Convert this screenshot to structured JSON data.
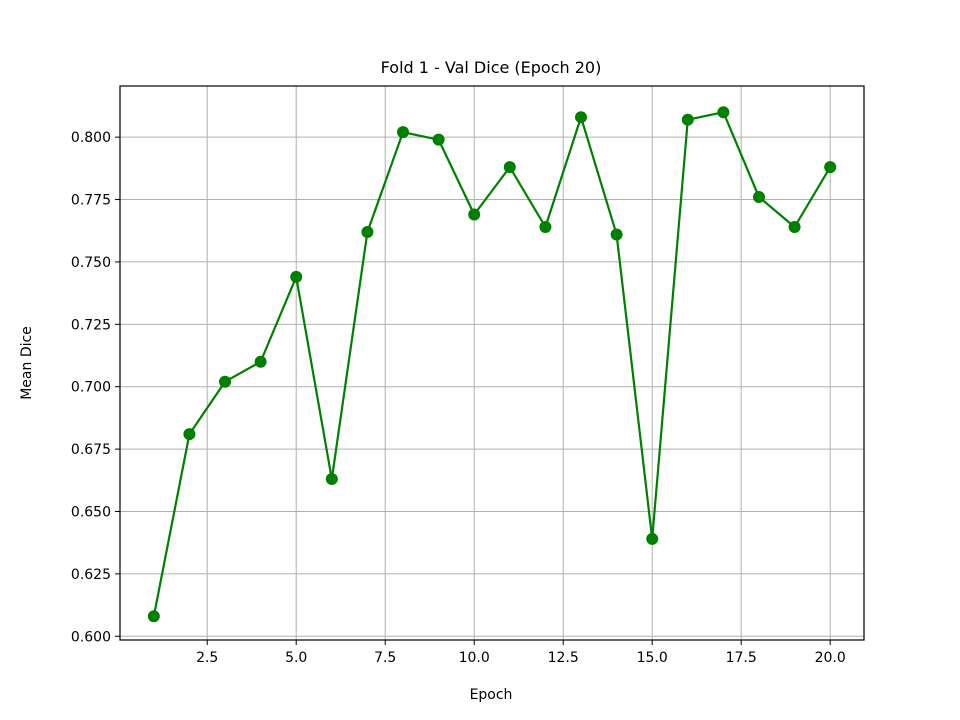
{
  "chart_data": {
    "type": "line",
    "title": "Fold 1 - Val Dice (Epoch 20)",
    "xlabel": "Epoch",
    "ylabel": "Mean Dice",
    "xlim": [
      0.05,
      20.95
    ],
    "ylim": [
      0.5985,
      0.8205
    ],
    "xticks": [
      2.5,
      5.0,
      7.5,
      10.0,
      12.5,
      15.0,
      17.5,
      20.0
    ],
    "xtick_labels": [
      "2.5",
      "5.0",
      "7.5",
      "10.0",
      "12.5",
      "15.0",
      "17.5",
      "20.0"
    ],
    "yticks": [
      0.6,
      0.625,
      0.65,
      0.675,
      0.7,
      0.725,
      0.75,
      0.775,
      0.8
    ],
    "ytick_labels": [
      "0.600",
      "0.625",
      "0.650",
      "0.675",
      "0.700",
      "0.725",
      "0.750",
      "0.775",
      "0.800"
    ],
    "grid": true,
    "color": "#008000",
    "series": [
      {
        "x": [
          1,
          2,
          3,
          4,
          5,
          6,
          7,
          8,
          9,
          10,
          11,
          12,
          13,
          14,
          15,
          16,
          17,
          18,
          19,
          20
        ],
        "values": [
          0.608,
          0.681,
          0.702,
          0.71,
          0.744,
          0.663,
          0.762,
          0.802,
          0.799,
          0.769,
          0.788,
          0.764,
          0.808,
          0.761,
          0.639,
          0.807,
          0.81,
          0.776,
          0.764,
          0.788
        ]
      }
    ]
  }
}
